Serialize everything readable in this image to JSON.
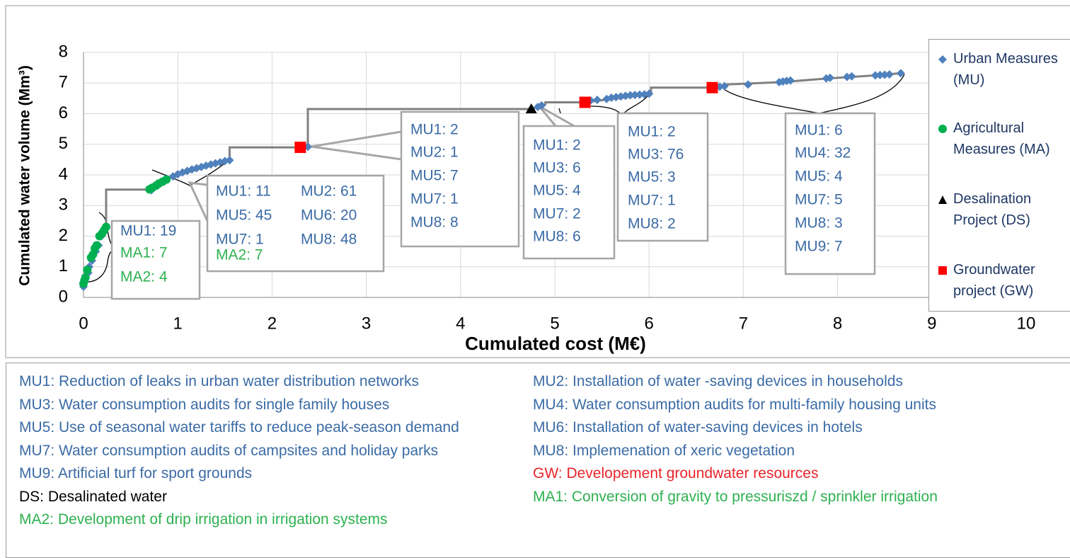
{
  "chart_data": {
    "type": "scatter",
    "xlabel": "Cumulated cost (M€)",
    "ylabel": "Cumulated water volume (Mm³)",
    "xlim": [
      0,
      10
    ],
    "xticks": [
      0,
      1,
      2,
      3,
      4,
      5,
      6,
      7,
      8,
      9,
      10
    ],
    "ylim": [
      0,
      8
    ],
    "yticks": [
      0,
      1,
      2,
      3,
      4,
      5,
      6,
      7,
      8
    ],
    "grid": true,
    "legend": "right",
    "series": [
      {
        "name": "Urban Measures (MU)",
        "color": "#4f81bd",
        "marker": "diamond",
        "x": [
          0.0,
          0.02,
          0.05,
          0.06,
          0.09,
          0.13,
          0.16,
          0.19,
          0.72,
          0.95,
          1.0,
          1.05,
          1.1,
          1.15,
          1.2,
          1.25,
          1.3,
          1.35,
          1.4,
          1.45,
          1.5,
          1.55,
          2.38,
          4.82,
          4.86,
          5.38,
          5.45,
          5.55,
          5.6,
          5.65,
          5.7,
          5.75,
          5.8,
          5.85,
          5.9,
          5.95,
          6.0,
          6.75,
          6.8,
          7.05,
          7.38,
          7.42,
          7.46,
          7.5,
          7.88,
          7.92,
          8.1,
          8.15,
          8.4,
          8.45,
          8.5,
          8.55,
          8.67
        ],
        "values": [
          0.35,
          0.6,
          0.8,
          1.0,
          1.2,
          1.5,
          1.7,
          2.0,
          3.5,
          3.95,
          4.02,
          4.08,
          4.13,
          4.18,
          4.22,
          4.26,
          4.3,
          4.34,
          4.38,
          4.41,
          4.45,
          4.48,
          4.92,
          6.22,
          6.27,
          6.43,
          6.45,
          6.48,
          6.52,
          6.54,
          6.56,
          6.58,
          6.6,
          6.61,
          6.62,
          6.63,
          6.65,
          6.88,
          6.9,
          6.95,
          7.03,
          7.05,
          7.07,
          7.08,
          7.15,
          7.17,
          7.2,
          7.22,
          7.25,
          7.26,
          7.27,
          7.28,
          7.32
        ]
      },
      {
        "name": "Agricultural Measures (MA)",
        "color": "#00b050",
        "marker": "circle",
        "x": [
          0.0,
          0.01,
          0.02,
          0.04,
          0.08,
          0.1,
          0.12,
          0.14,
          0.17,
          0.2,
          0.22,
          0.24,
          0.7,
          0.73,
          0.77,
          0.8,
          0.84,
          0.88
        ],
        "values": [
          0.45,
          0.55,
          0.65,
          0.9,
          1.3,
          1.4,
          1.6,
          1.7,
          2.0,
          2.1,
          2.2,
          2.3,
          3.53,
          3.58,
          3.65,
          3.72,
          3.78,
          3.85
        ]
      },
      {
        "name": "Desalination Project (DS)",
        "color": "#000000",
        "marker": "triangle",
        "x": [
          4.75
        ],
        "values": [
          6.15
        ]
      },
      {
        "name": "Groundwater project (GW)",
        "color": "#ff0000",
        "marker": "square",
        "x": [
          2.3,
          5.32,
          6.67
        ],
        "values": [
          4.9,
          6.37,
          6.85
        ]
      },
      {
        "type": "line",
        "color": "#808080",
        "x": [
          0.24,
          0.24,
          0.7,
          0.9,
          1.55,
          1.55,
          2.3,
          2.38,
          2.38,
          4.75,
          4.9,
          4.9,
          5.32,
          6.0,
          6.02,
          6.02,
          6.67,
          6.8,
          6.8,
          7.4,
          7.9,
          8.4,
          8.67
        ],
        "values": [
          2.3,
          3.52,
          3.52,
          3.9,
          4.48,
          4.9,
          4.9,
          4.92,
          6.15,
          6.15,
          6.3,
          6.37,
          6.37,
          6.63,
          6.63,
          6.85,
          6.85,
          6.9,
          6.95,
          7.03,
          7.15,
          7.25,
          7.32
        ]
      }
    ],
    "annotations": [
      {
        "items": [
          {
            "text": "MU1: 19",
            "color": "#3b6ba5"
          },
          {
            "text": "MA1: 7",
            "color": "#2eb150"
          },
          {
            "text": "MA2: 4",
            "color": "#2eb150"
          }
        ]
      },
      {
        "items": [
          {
            "text": "MU1: 11",
            "color": "#3b6ba5"
          },
          {
            "text": "MU2: 61",
            "color": "#3b6ba5"
          },
          {
            "text": "MU5: 45",
            "color": "#3b6ba5"
          },
          {
            "text": "MU6: 20",
            "color": "#3b6ba5"
          },
          {
            "text": "MU7: 1",
            "color": "#3b6ba5"
          },
          {
            "text": "MU8: 48",
            "color": "#3b6ba5"
          },
          {
            "text": "MA2: 7",
            "color": "#2eb150"
          }
        ]
      },
      {
        "items": [
          {
            "text": "MU1: 2",
            "color": "#3b6ba5"
          },
          {
            "text": "MU2: 1",
            "color": "#3b6ba5"
          },
          {
            "text": "MU5: 7",
            "color": "#3b6ba5"
          },
          {
            "text": "MU7: 1",
            "color": "#3b6ba5"
          },
          {
            "text": "MU8: 8",
            "color": "#3b6ba5"
          }
        ]
      },
      {
        "items": [
          {
            "text": "MU1: 2",
            "color": "#3b6ba5"
          },
          {
            "text": "MU3: 6",
            "color": "#3b6ba5"
          },
          {
            "text": "MU5: 4",
            "color": "#3b6ba5"
          },
          {
            "text": "MU7: 2",
            "color": "#3b6ba5"
          },
          {
            "text": "MU8: 6",
            "color": "#3b6ba5"
          }
        ]
      },
      {
        "items": [
          {
            "text": "MU1: 2",
            "color": "#3b6ba5"
          },
          {
            "text": "MU3: 76",
            "color": "#3b6ba5"
          },
          {
            "text": "MU5: 3",
            "color": "#3b6ba5"
          },
          {
            "text": "MU7: 1",
            "color": "#3b6ba5"
          },
          {
            "text": "MU8: 2",
            "color": "#3b6ba5"
          }
        ]
      },
      {
        "items": [
          {
            "text": "MU1: 6",
            "color": "#3b6ba5"
          },
          {
            "text": "MU4: 32",
            "color": "#3b6ba5"
          },
          {
            "text": "MU5: 4",
            "color": "#3b6ba5"
          },
          {
            "text": "MU7: 5",
            "color": "#3b6ba5"
          },
          {
            "text": "MU8: 3",
            "color": "#3b6ba5"
          },
          {
            "text": "MU9: 7",
            "color": "#3b6ba5"
          }
        ]
      }
    ],
    "notes": [
      {
        "text": "MU1: Reduction of leaks in urban water distribution networks",
        "color": "#3b6ba5"
      },
      {
        "text": "MU2: Installation of water -saving devices in households",
        "color": "#3b6ba5"
      },
      {
        "text": "MU3: Water consumption audits for single family houses",
        "color": "#3b6ba5"
      },
      {
        "text": "MU4: Water consumption audits for multi-family housing units",
        "color": "#3b6ba5"
      },
      {
        "text": "MU5: Use of seasonal water tariffs to reduce peak-season demand",
        "color": "#3b6ba5"
      },
      {
        "text": "MU6: Installation of water-saving devices in hotels",
        "color": "#3b6ba5"
      },
      {
        "text": "MU7: Water consumption audits of campsites and holiday parks",
        "color": "#3b6ba5"
      },
      {
        "text": "MU8: Implemenation of xeric vegetation",
        "color": "#3b6ba5"
      },
      {
        "text": "MU9: Artificial turf for sport grounds",
        "color": "#3b6ba5"
      },
      {
        "text": "GW:  Developement groundwater resources",
        "color": "#e8252a"
      },
      {
        "text": "DS: Desalinated water",
        "color": "#000000"
      },
      {
        "text": "MA1: Conversion of gravity to pressuriszd / sprinkler irrigation",
        "color": "#2eb150"
      },
      {
        "text": "MA2: Development of drip irrigation in irrigation systems",
        "color": "#2eb150"
      }
    ]
  }
}
